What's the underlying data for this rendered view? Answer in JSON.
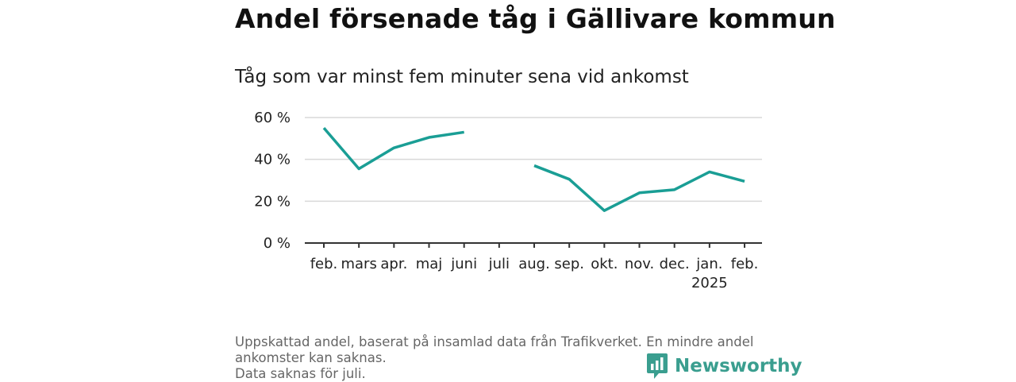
{
  "title": "Andel försenade tåg i Gällivare kommun",
  "subtitle": "Tåg som var minst fem minuter sena vid ankomst",
  "footnote": {
    "line1": "Uppskattad andel, baserat på insamlad data från Trafikverket. En mindre andel",
    "line2": "ankomster kan saknas.",
    "line3": "Data saknas för juli."
  },
  "brand": {
    "name": "Newsworthy",
    "icon": "newsworthy-logo-icon",
    "color": "#3a9e8f"
  },
  "chart_data": {
    "type": "line",
    "categories": [
      "feb.",
      "mars",
      "apr.",
      "maj",
      "juni",
      "juli",
      "aug.",
      "sep.",
      "okt.",
      "nov.",
      "dec.",
      "jan.",
      "feb."
    ],
    "year_label": "2025",
    "series": [
      {
        "values": [
          55,
          35.5,
          45.5,
          50.5,
          53,
          null,
          37,
          30.5,
          15.5,
          24,
          25.5,
          34,
          29.5
        ],
        "color": "#1a9e95"
      }
    ],
    "ylim": [
      0,
      60
    ],
    "yticks": [
      0,
      20,
      40,
      60
    ],
    "ytick_labels": [
      "0 %",
      "20 %",
      "40 %",
      "60 %"
    ],
    "grid": true
  }
}
